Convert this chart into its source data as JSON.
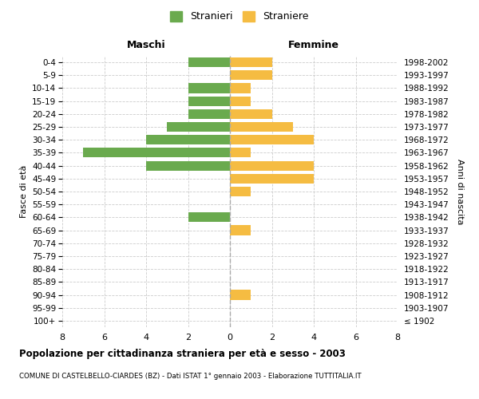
{
  "age_groups": [
    "100+",
    "95-99",
    "90-94",
    "85-89",
    "80-84",
    "75-79",
    "70-74",
    "65-69",
    "60-64",
    "55-59",
    "50-54",
    "45-49",
    "40-44",
    "35-39",
    "30-34",
    "25-29",
    "20-24",
    "15-19",
    "10-14",
    "5-9",
    "0-4"
  ],
  "birth_years": [
    "≤ 1902",
    "1903-1907",
    "1908-1912",
    "1913-1917",
    "1918-1922",
    "1923-1927",
    "1928-1932",
    "1933-1937",
    "1938-1942",
    "1943-1947",
    "1948-1952",
    "1953-1957",
    "1958-1962",
    "1963-1967",
    "1968-1972",
    "1973-1977",
    "1978-1982",
    "1983-1987",
    "1988-1992",
    "1993-1997",
    "1998-2002"
  ],
  "maschi": [
    0,
    0,
    0,
    0,
    0,
    0,
    0,
    0,
    2,
    0,
    0,
    0,
    4,
    7,
    4,
    3,
    2,
    2,
    2,
    0,
    2
  ],
  "femmine": [
    0,
    0,
    1,
    0,
    0,
    0,
    0,
    1,
    0,
    0,
    1,
    4,
    4,
    1,
    4,
    3,
    2,
    1,
    1,
    2,
    2
  ],
  "maschi_color": "#6aaa4e",
  "femmine_color": "#f5bc42",
  "background_color": "#ffffff",
  "grid_color": "#cccccc",
  "title": "Popolazione per cittadinanza straniera per età e sesso - 2003",
  "subtitle": "COMUNE DI CASTELBELLO-CIARDES (BZ) - Dati ISTAT 1° gennaio 2003 - Elaborazione TUTTITALIA.IT",
  "ylabel_left": "Fasce di età",
  "ylabel_right": "Anni di nascita",
  "xlabel_left": "Maschi",
  "xlabel_right": "Femmine",
  "legend_maschi": "Stranieri",
  "legend_femmine": "Straniere",
  "xlim": 8
}
